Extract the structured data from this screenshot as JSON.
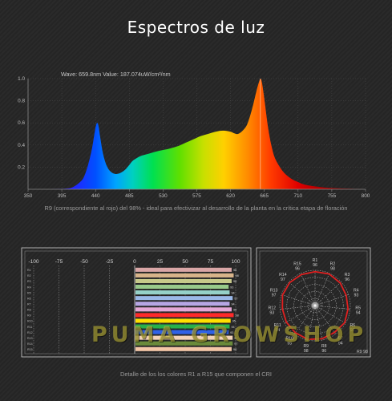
{
  "title": "Espectros de luz",
  "readout": "Wave: 659.8nm Value: 187.074uW/cm²/nm",
  "caption_top": "R9 (correspondiente al rojo) del 98% - ideal para efectivizar al desarrollo de la planta en la crítica etapa de floración",
  "caption_bottom": "Detalle de los los colores R1 a R15 que componen el CRI",
  "watermark": "PUMA GROWSHOP",
  "chart_data": [
    {
      "type": "area",
      "xlim": [
        350,
        800
      ],
      "ylim": [
        0,
        1.0
      ],
      "x_ticks": [
        "350",
        "395",
        "440",
        "485",
        "530",
        "575",
        "620",
        "665",
        "710",
        "755",
        "800"
      ],
      "y_ticks": [
        "0.2",
        "0.4",
        "0.6",
        "0.8",
        "1.0"
      ],
      "cursor_x": 659.8,
      "x": [
        380,
        400,
        410,
        420,
        425,
        430,
        435,
        438,
        440,
        442,
        444,
        446,
        450,
        455,
        460,
        465,
        470,
        475,
        480,
        485,
        490,
        500,
        510,
        520,
        530,
        540,
        550,
        560,
        570,
        580,
        590,
        600,
        610,
        620,
        630,
        640,
        645,
        650,
        655,
        658,
        660,
        662,
        665,
        670,
        675,
        680,
        690,
        700,
        710,
        720,
        740,
        760,
        780,
        800
      ],
      "y": [
        0.0,
        0.005,
        0.02,
        0.07,
        0.12,
        0.22,
        0.36,
        0.48,
        0.56,
        0.6,
        0.57,
        0.48,
        0.32,
        0.21,
        0.16,
        0.14,
        0.14,
        0.155,
        0.18,
        0.22,
        0.26,
        0.3,
        0.32,
        0.34,
        0.355,
        0.37,
        0.39,
        0.42,
        0.45,
        0.48,
        0.5,
        0.52,
        0.53,
        0.52,
        0.5,
        0.56,
        0.64,
        0.76,
        0.9,
        0.97,
        1.0,
        0.96,
        0.82,
        0.56,
        0.38,
        0.27,
        0.16,
        0.1,
        0.065,
        0.04,
        0.02,
        0.01,
        0.005,
        0.0
      ]
    },
    {
      "type": "bar",
      "orientation": "horizontal",
      "xlim": [
        -100,
        100
      ],
      "x_ticks": [
        "-100",
        "-75",
        "-50",
        "-25",
        "0",
        "25",
        "50",
        "75",
        "100"
      ],
      "categories": [
        "R1",
        "R2",
        "R3",
        "R4",
        "R5",
        "R6",
        "R7",
        "R8",
        "R9",
        "R10",
        "R11",
        "R12",
        "R13",
        "R14",
        "R15"
      ],
      "values": [
        96,
        98,
        96,
        93,
        94,
        97,
        94,
        96,
        98,
        95,
        94,
        93,
        97,
        97,
        96
      ],
      "colors": [
        "#d9a6a6",
        "#d8b48a",
        "#c7c98a",
        "#98c98a",
        "#95d1c8",
        "#9ab8e8",
        "#b6a6e4",
        "#e4a8d6",
        "#ff2a2a",
        "#ffe000",
        "#28b04a",
        "#2f62e8",
        "#f2d2b8",
        "#6a8a3a",
        "#f4c7a8"
      ]
    },
    {
      "type": "radar",
      "categories": [
        "R1",
        "R2",
        "R3",
        "R4",
        "R5",
        "R6",
        "R7",
        "R8",
        "R9",
        "R10",
        "R11",
        "R12",
        "R13",
        "R14",
        "R15"
      ],
      "values": [
        96,
        98,
        96,
        93,
        94,
        97,
        94,
        96,
        98,
        95,
        94,
        93,
        97,
        97,
        96
      ],
      "rmax": 100
    }
  ]
}
